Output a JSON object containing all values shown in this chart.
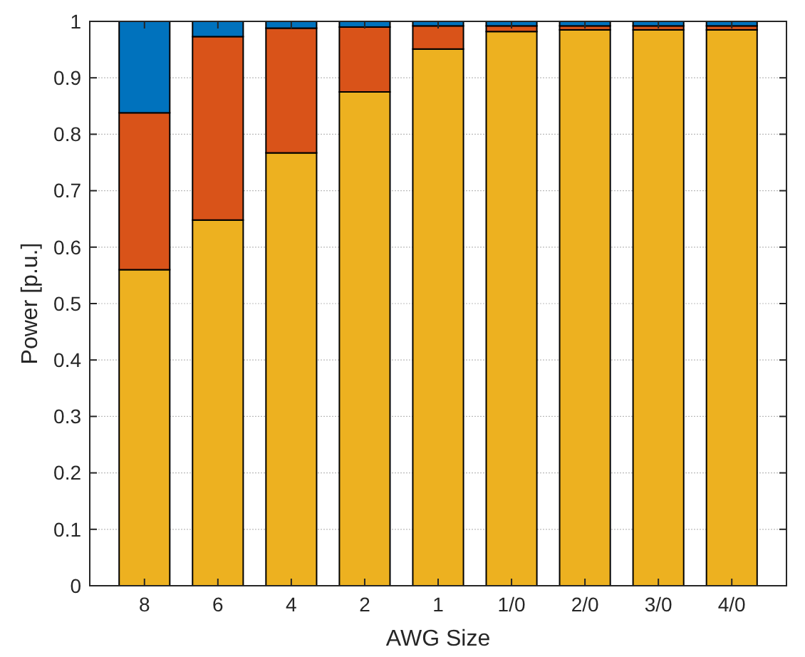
{
  "chart_data": {
    "type": "bar",
    "stacked": true,
    "xlabel": "AWG Size",
    "ylabel": "Power [p.u.]",
    "categories": [
      "8",
      "6",
      "4",
      "2",
      "1",
      "1/0",
      "2/0",
      "3/0",
      "4/0"
    ],
    "series": [
      {
        "color": "#edb120",
        "values": [
          0.56,
          0.648,
          0.767,
          0.875,
          0.951,
          0.982,
          0.985,
          0.985,
          0.985
        ]
      },
      {
        "color": "#d95319",
        "values": [
          0.278,
          0.325,
          0.221,
          0.115,
          0.041,
          0.01,
          0.007,
          0.007,
          0.007
        ]
      },
      {
        "color": "#0072bd",
        "values": [
          0.162,
          0.027,
          0.012,
          0.01,
          0.008,
          0.008,
          0.008,
          0.008,
          0.008
        ]
      }
    ],
    "ylim": [
      0,
      1
    ],
    "yticks": [
      0,
      0.1,
      0.2,
      0.3,
      0.4,
      0.5,
      0.6,
      0.7,
      0.8,
      0.9,
      1
    ],
    "grid": "y"
  }
}
